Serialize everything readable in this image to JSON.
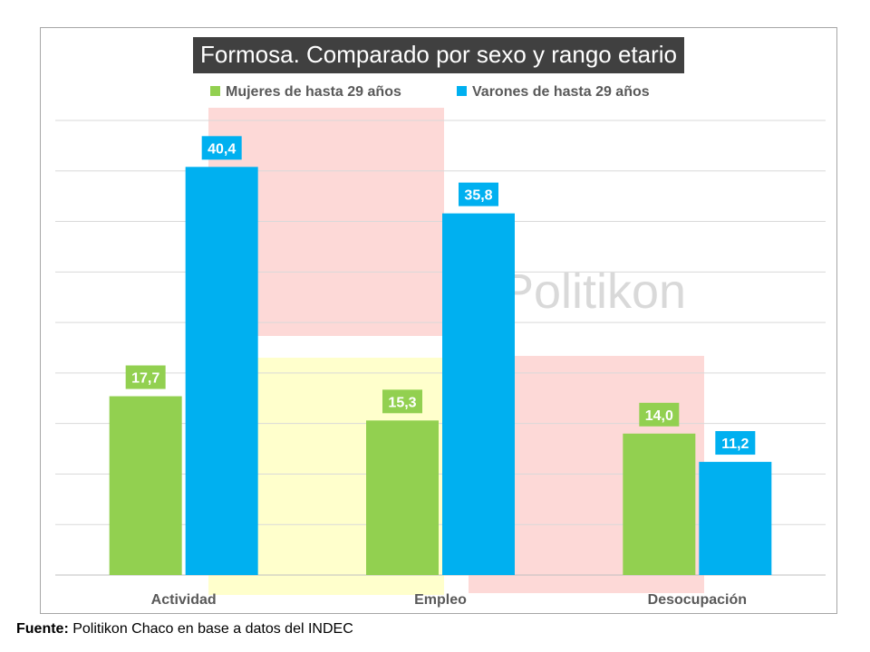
{
  "chart_data": {
    "type": "bar",
    "title": "Formosa. Comparado por sexo y rango etario",
    "categories": [
      "Actividad",
      "Empleo",
      "Desocupación"
    ],
    "series": [
      {
        "name": "Mujeres de hasta 29 años",
        "values": [
          17.7,
          15.3,
          14.0
        ],
        "labels": [
          "17,7",
          "15,3",
          "14,0"
        ],
        "color": "#92d050"
      },
      {
        "name": "Varones de hasta 29 años",
        "values": [
          40.4,
          35.8,
          11.2
        ],
        "labels": [
          "40,4",
          "35,8",
          "11,2"
        ],
        "color": "#00b0f0"
      }
    ],
    "ylim": [
      0,
      45
    ],
    "y_axis_labels_shown": false,
    "grid": true,
    "legend_position": "top",
    "watermark": "Politikon"
  },
  "source": {
    "label": "Fuente:",
    "text": "Politikon Chaco en base a datos del INDEC"
  }
}
